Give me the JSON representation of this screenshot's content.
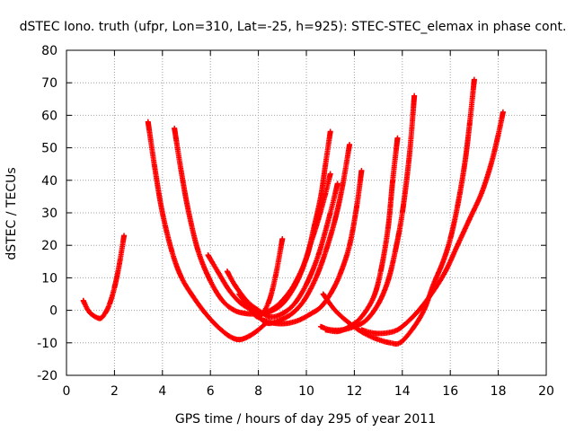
{
  "chart_data": {
    "type": "scatter",
    "title": "dSTEC Iono. truth (ufpr, Lon=310, Lat=-25, h=925): STEC-STEC_elemax in phase cont.",
    "xlabel": "GPS time / hours of day 295 of year 2011",
    "ylabel": "dSTEC  / TECUs",
    "xlim": [
      0,
      20
    ],
    "ylim": [
      -20,
      80
    ],
    "x_ticks": [
      0,
      2,
      4,
      6,
      8,
      10,
      12,
      14,
      16,
      18,
      20
    ],
    "y_ticks": [
      -20,
      -10,
      0,
      10,
      20,
      30,
      40,
      50,
      60,
      70,
      80
    ],
    "grid": true,
    "marker": "+",
    "color": "#ff0000",
    "arcs": [
      {
        "x": [
          0.7,
          0.9,
          1.1,
          1.4,
          1.6,
          1.8,
          2.0,
          2.2,
          2.4
        ],
        "y": [
          3,
          0,
          -1.5,
          -2.5,
          -1,
          2,
          7,
          14,
          23
        ]
      },
      {
        "x": [
          3.4,
          3.7,
          4.0,
          4.4,
          4.8,
          5.3,
          5.8,
          6.3,
          6.8,
          7.2,
          7.6,
          8.0,
          8.3
        ],
        "y": [
          58,
          43,
          30,
          18,
          10,
          4,
          -1,
          -5,
          -8,
          -9,
          -8,
          -6,
          -4
        ]
      },
      {
        "x": [
          4.5,
          4.8,
          5.1,
          5.5,
          6.0,
          6.5,
          7.0,
          7.5,
          8.0,
          8.5,
          9.0,
          9.5,
          10.0,
          10.3,
          10.6,
          10.8,
          11.0
        ],
        "y": [
          56,
          42,
          30,
          18,
          9,
          3,
          0,
          -1,
          -1,
          0,
          3,
          8,
          16,
          25,
          35,
          45,
          55
        ]
      },
      {
        "x": [
          5.9,
          6.3,
          6.8,
          7.3,
          7.8,
          8.2,
          8.6,
          9.0,
          9.4,
          9.8,
          10.2,
          10.5,
          10.8,
          11.0
        ],
        "y": [
          17,
          12,
          6,
          2,
          0,
          -1,
          0,
          2,
          6,
          12,
          21,
          28,
          36,
          42
        ]
      },
      {
        "x": [
          6.7,
          7.0,
          7.5,
          8.0,
          8.5,
          9.0,
          9.5,
          10.0,
          10.5,
          11.0,
          11.3
        ],
        "y": [
          12,
          8,
          3,
          0,
          -2,
          -1,
          2,
          8,
          17,
          30,
          39
        ]
      },
      {
        "x": [
          7.2,
          7.6,
          8.0,
          8.4,
          8.7,
          9.0
        ],
        "y": [
          5,
          1,
          -2,
          2,
          10,
          22
        ]
      },
      {
        "x": [
          8.0,
          8.4,
          8.9,
          9.4,
          9.9,
          10.4,
          10.8,
          11.2,
          11.5,
          11.8
        ],
        "y": [
          -2,
          -4,
          -3,
          -1,
          3,
          10,
          18,
          28,
          38,
          51
        ]
      },
      {
        "x": [
          8.2,
          8.7,
          9.2,
          9.7,
          10.2,
          10.6,
          11.0,
          11.4,
          11.8,
          12.1,
          12.3
        ],
        "y": [
          -3,
          -4,
          -4,
          -3,
          -1,
          1,
          5,
          11,
          20,
          32,
          43
        ]
      },
      {
        "x": [
          10.6,
          11.0,
          11.5,
          12.0,
          12.5,
          13.0,
          13.4,
          13.7,
          14.0,
          14.3,
          14.5
        ],
        "y": [
          -5,
          -6,
          -6,
          -5,
          -3,
          2,
          9,
          18,
          30,
          48,
          66
        ]
      },
      {
        "x": [
          10.8,
          11.3,
          11.8,
          12.3,
          12.8,
          13.1,
          13.4,
          13.6,
          13.8
        ],
        "y": [
          -6,
          -6.5,
          -5,
          -2,
          4,
          12,
          25,
          40,
          53
        ]
      },
      {
        "x": [
          10.7,
          11.2,
          11.8,
          12.4,
          13.0,
          13.5,
          13.9,
          14.4,
          14.9,
          15.3,
          15.7,
          16.0,
          16.3,
          16.6,
          16.8,
          17.0
        ],
        "y": [
          5,
          0,
          -4,
          -7,
          -9,
          -10,
          -10,
          -6,
          0,
          8,
          15,
          22,
          32,
          45,
          57,
          71
        ]
      },
      {
        "x": [
          12.3,
          12.8,
          13.3,
          13.8,
          14.3,
          14.8,
          15.3,
          15.8,
          16.3,
          16.8,
          17.3,
          17.7,
          18.0,
          18.2
        ],
        "y": [
          -6,
          -7,
          -7,
          -6,
          -3,
          1,
          6,
          12,
          20,
          28,
          36,
          45,
          54,
          61
        ]
      }
    ]
  }
}
